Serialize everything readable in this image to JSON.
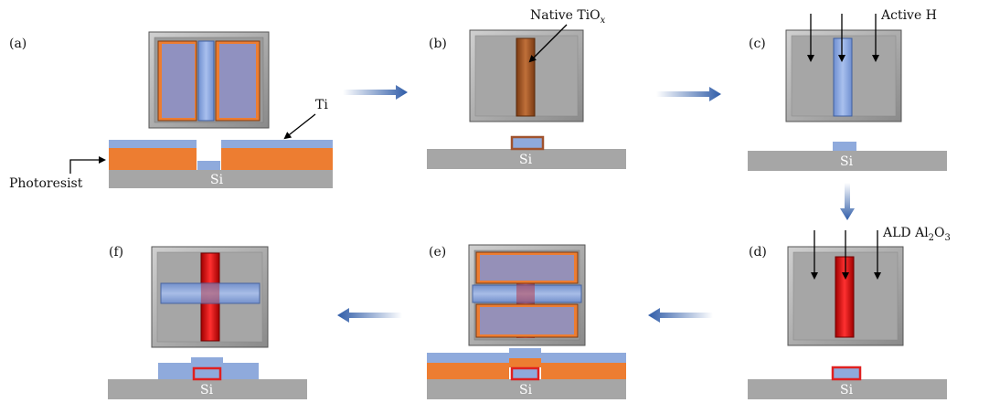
{
  "panels": [
    {
      "id": "a",
      "label": "(a)"
    },
    {
      "id": "b",
      "label": "(b)"
    },
    {
      "id": "c",
      "label": "(c)"
    },
    {
      "id": "d",
      "label": "(d)"
    },
    {
      "id": "e",
      "label": "(e)"
    },
    {
      "id": "f",
      "label": "(f)"
    }
  ],
  "annotations": {
    "ti": "Ti",
    "photoresist": "Photoresist",
    "si": "Si",
    "native_tiox_main": "Native TiO",
    "native_tiox_sub": "x",
    "active_h": "Active H",
    "ald_main": "ALD Al",
    "ald_sub1": "2",
    "ald_mid": "O",
    "ald_sub2": "3"
  },
  "colors": {
    "substrate": "#a6a6a6",
    "photoresist": "#ed7d31",
    "ti": "#8faadc",
    "native_tiox": "#a0522d",
    "al2o3": "#e02020",
    "chip": "#a6a6a6",
    "arrow": "#2f5ca8"
  }
}
